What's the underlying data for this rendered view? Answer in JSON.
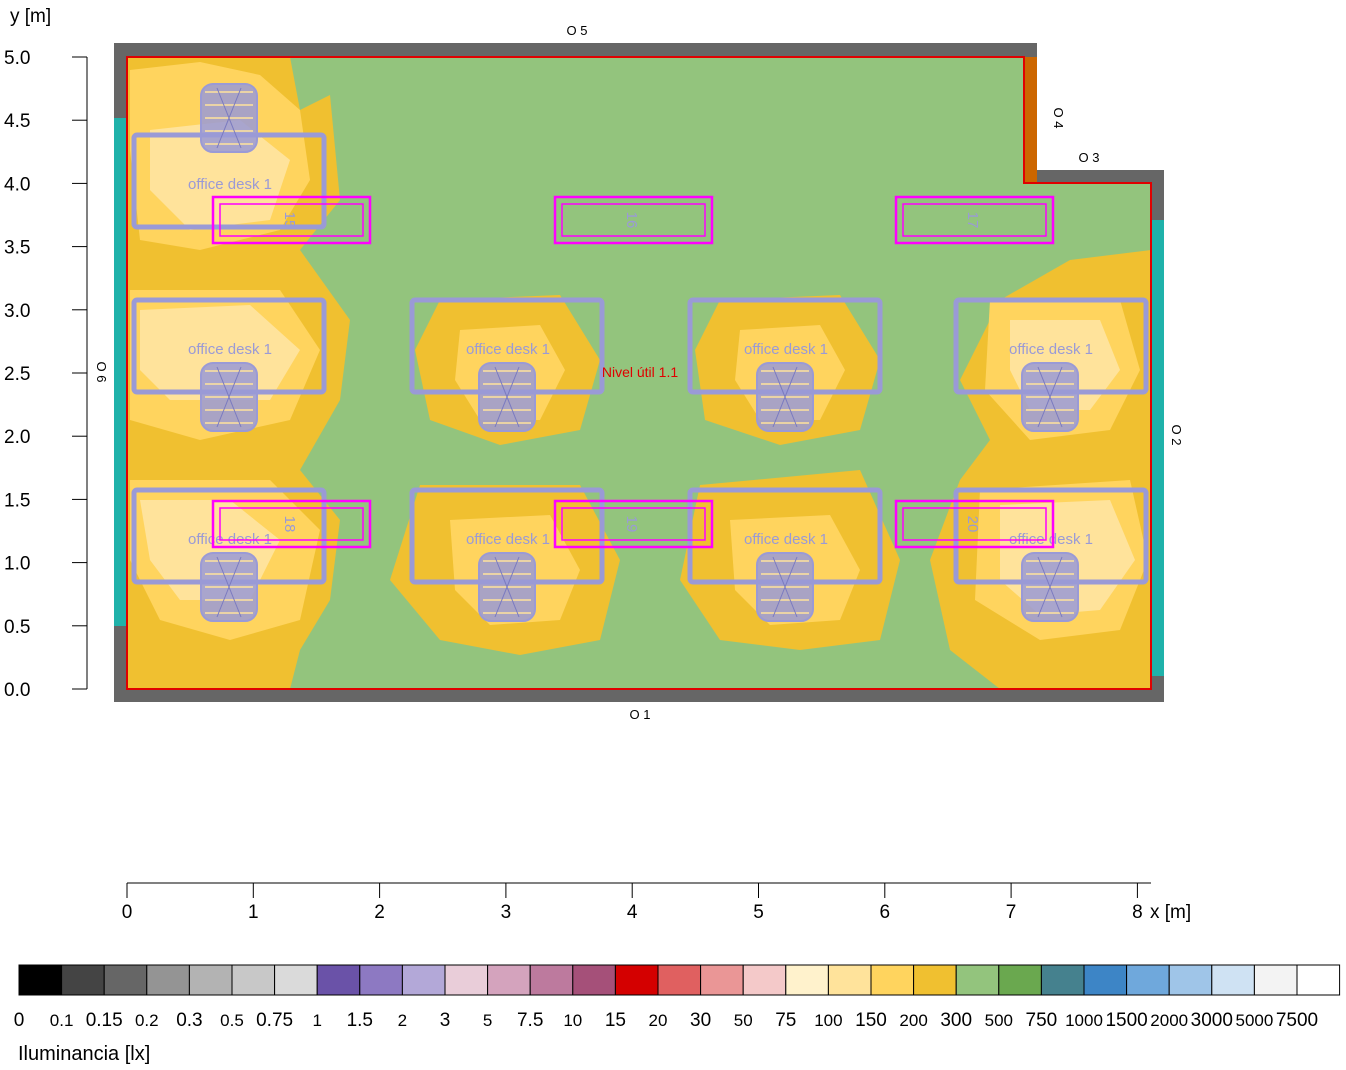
{
  "axes": {
    "y_label": "y [m]",
    "x_label": "x [m]",
    "y_ticks": [
      "5.0",
      "4.5",
      "4.0",
      "3.5",
      "3.0",
      "2.5",
      "2.0",
      "1.5",
      "1.0",
      "0.5",
      "0.0"
    ],
    "x_ticks": [
      "0",
      "1",
      "2",
      "3",
      "4",
      "5",
      "6",
      "7",
      "8"
    ]
  },
  "walls": {
    "o1": "O 1",
    "o2": "O 2",
    "o3": "O 3",
    "o4": "O 4",
    "o5": "O 5",
    "o6": "O 6"
  },
  "room_label": "Nivel útil 1.1",
  "desks": [
    "office desk 1",
    "office desk 1",
    "office desk 1",
    "office desk 1",
    "office desk 1",
    "office desk 1",
    "office desk 1",
    "office desk 1",
    "office desk 1"
  ],
  "luminaires": [
    "15",
    "16",
    "17",
    "18",
    "19",
    "20"
  ],
  "legend": {
    "title": "Iluminancia [lx]",
    "labels": [
      "0",
      "0.1",
      "0.15",
      "0.2",
      "0.3",
      "0.5",
      "0.75",
      "1",
      "1.5",
      "2",
      "3",
      "5",
      "7.5",
      "10",
      "15",
      "20",
      "30",
      "50",
      "75",
      "100",
      "150",
      "200",
      "300",
      "500",
      "750",
      "1000",
      "1500",
      "2000",
      "3000",
      "5000",
      "7500"
    ],
    "colors": [
      "#000000",
      "#444444",
      "#666666",
      "#949494",
      "#b3b3b3",
      "#c8c8c8",
      "#dadada",
      "#6a52a8",
      "#8d79c2",
      "#b3a8d8",
      "#e9cdd9",
      "#d4a3bd",
      "#bd7a9e",
      "#a55079",
      "#d40000",
      "#e06060",
      "#ea9696",
      "#f4c9c9",
      "#fff2cc",
      "#ffe39b",
      "#ffd45e",
      "#f0c030",
      "#93c47d",
      "#6aa84f",
      "#45818e",
      "#3d85c6",
      "#6fa8dc",
      "#9fc5e8",
      "#cfe2f3",
      "#f3f3f3",
      "#ffffff"
    ]
  },
  "colors": {
    "wall": "#666666",
    "window": "#20b2aa",
    "room_outline": "#e00000",
    "furniture": "#9a9ad6",
    "luminaire": "#ff00ff",
    "band_low": "#93c47d",
    "band_mid": "#f0c030",
    "band_high": "#ffd45e",
    "band_peak": "#ffe39b"
  }
}
